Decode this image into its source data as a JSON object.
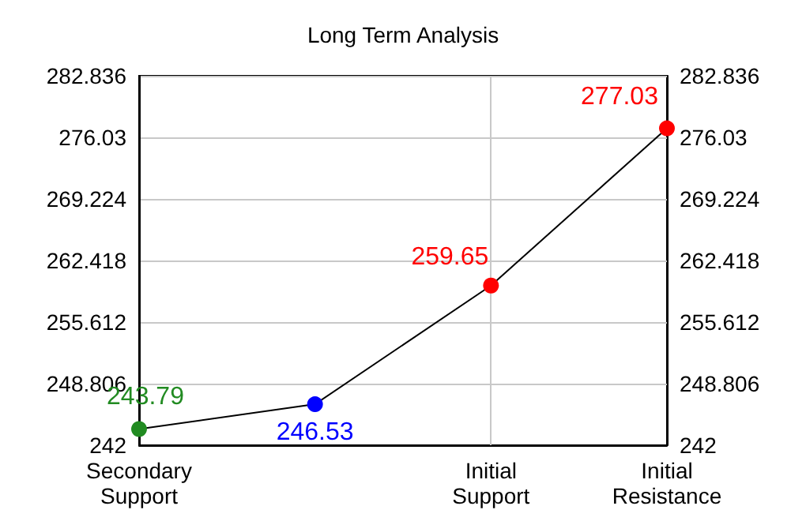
{
  "chart_data": {
    "type": "line",
    "title": "Long Term Analysis",
    "categories": [
      "Secondary\nSupport",
      null,
      "Initial\nSupport",
      "Initial\nResistance"
    ],
    "series": [
      {
        "color": "#000000",
        "colors": [
          "#228b22",
          "#0000ff",
          "#ff0000",
          "#ff0000"
        ],
        "values": [
          243.79,
          246.53,
          259.65,
          277.03
        ]
      }
    ],
    "ylim": [
      242,
      282.836
    ],
    "yticks": [
      242,
      248.806,
      255.612,
      262.418,
      269.224,
      276.03,
      282.836
    ],
    "y2lim": [
      242,
      282.836
    ],
    "y2ticks": [
      242,
      248.806,
      255.612,
      262.418,
      269.224,
      276.03,
      282.836
    ],
    "grid": true,
    "marker": "circle",
    "data_labels": true
  }
}
